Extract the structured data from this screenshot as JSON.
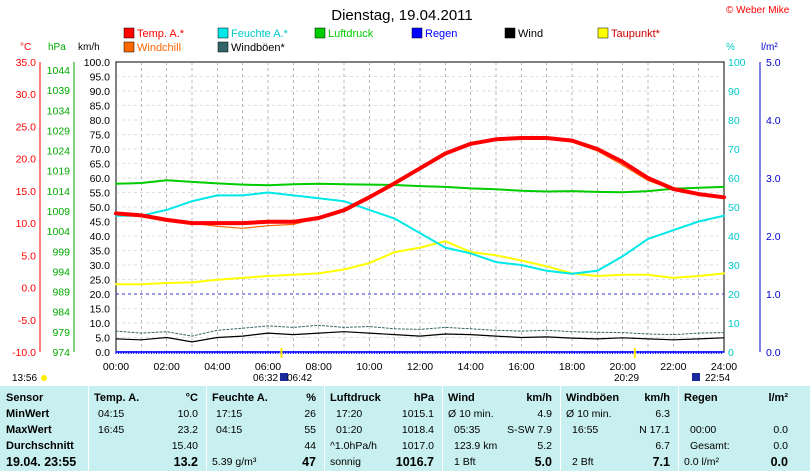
{
  "header": {
    "title": "Dienstag, 19.04.2011",
    "copyright": "© Weber Mike",
    "time_left": "13:56",
    "sun_times": [
      "06:32",
      "06:42",
      "20:29",
      "22:54"
    ]
  },
  "legend": [
    {
      "label": "Temp. A.*",
      "color": "#ff0000"
    },
    {
      "label": "Feuchte A.*",
      "color": "#00e8e8"
    },
    {
      "label": "Luftdruck",
      "color": "#00cc00"
    },
    {
      "label": "Regen",
      "color": "#0000ff"
    },
    {
      "label": "Wind",
      "color": "#000000"
    },
    {
      "label": "Taupunkt*",
      "color": "#ffff00"
    },
    {
      "label": "Windchill",
      "color": "#ff6600"
    },
    {
      "label": "Windböen*",
      "color": "#336666"
    }
  ],
  "axes": {
    "temp_unit": "°C",
    "hpa_unit": "hPa",
    "kmh_unit": "km/h",
    "pct_unit": "%",
    "rain_unit": "l/m²",
    "temp_ticks": [
      "35.0",
      "30.0",
      "25.0",
      "20.0",
      "15.0",
      "10.0",
      "5.0",
      "0.0",
      "-5.0",
      "-10.0"
    ],
    "hpa_ticks": [
      "1044",
      "1039",
      "1034",
      "1029",
      "1024",
      "1019",
      "1014",
      "1009",
      "1004",
      "999",
      "994",
      "989",
      "984",
      "979",
      "974"
    ],
    "kmh_ticks": [
      "100.0",
      "95.0",
      "90.0",
      "85.0",
      "80.0",
      "75.0",
      "70.0",
      "65.0",
      "60.0",
      "55.0",
      "50.0",
      "45.0",
      "40.0",
      "35.0",
      "30.0",
      "25.0",
      "20.0",
      "15.0",
      "10.0",
      "5.0",
      "0.0"
    ],
    "pct_ticks": [
      "100",
      "90",
      "80",
      "70",
      "60",
      "50",
      "40",
      "30",
      "20",
      "10",
      "0"
    ],
    "rain_ticks": [
      "5.0",
      "4.0",
      "3.0",
      "2.0",
      "1.0",
      "0.0"
    ],
    "x_ticks": [
      "00:00",
      "02:00",
      "04:00",
      "06:00",
      "08:00",
      "10:00",
      "12:00",
      "14:00",
      "16:00",
      "18:00",
      "20:00",
      "22:00",
      "24:00"
    ]
  },
  "chart_data": {
    "type": "line",
    "title": "Dienstag, 19.04.2011",
    "x": [
      0,
      1,
      2,
      3,
      4,
      5,
      6,
      7,
      8,
      9,
      10,
      11,
      12,
      13,
      14,
      15,
      16,
      17,
      18,
      19,
      20,
      21,
      22,
      23,
      24
    ],
    "xlim": [
      0,
      24
    ],
    "series": [
      {
        "name": "Temp. A.*",
        "axis": "temp",
        "color": "#ff0000",
        "values": [
          11.5,
          11.2,
          10.5,
          10.0,
          10.0,
          10.0,
          10.2,
          10.2,
          10.8,
          12.0,
          14.0,
          16.2,
          18.5,
          20.8,
          22.3,
          23.0,
          23.2,
          23.2,
          22.8,
          21.5,
          19.5,
          17.0,
          15.3,
          14.5,
          14.0
        ]
      },
      {
        "name": "Windchill",
        "axis": "temp",
        "color": "#ff6600",
        "values": [
          11.5,
          11.2,
          10.5,
          10.0,
          9.5,
          9.2,
          9.6,
          9.8,
          10.8,
          12.0,
          14.0,
          16.2,
          18.5,
          20.8,
          22.3,
          23.0,
          23.2,
          23.2,
          22.6,
          21.2,
          19.0,
          16.6,
          15.2,
          14.5,
          14.0
        ]
      },
      {
        "name": "Feuchte A.*",
        "axis": "pct",
        "color": "#00e8e8",
        "values": [
          47,
          47,
          49,
          52,
          54,
          54,
          55,
          54,
          53,
          52,
          49,
          46,
          41,
          36,
          34,
          31,
          30,
          28,
          27,
          28,
          33,
          39,
          42,
          45,
          47
        ]
      },
      {
        "name": "Luftdruck",
        "axis": "hpa",
        "color": "#00cc00",
        "values": [
          1017.5,
          1017.7,
          1018.4,
          1018.0,
          1017.6,
          1017.3,
          1017.1,
          1017.4,
          1017.5,
          1017.4,
          1017.3,
          1017.2,
          1016.9,
          1016.7,
          1016.3,
          1016.1,
          1015.7,
          1015.5,
          1015.6,
          1015.4,
          1015.3,
          1015.6,
          1016.2,
          1016.5,
          1016.7
        ]
      },
      {
        "name": "Taupunkt*",
        "axis": "temp",
        "color": "#ffff00",
        "values": [
          0.5,
          0.5,
          0.7,
          0.8,
          1.2,
          1.5,
          1.8,
          2.0,
          2.2,
          2.8,
          3.8,
          5.5,
          6.2,
          7.2,
          5.5,
          5.0,
          4.2,
          3.3,
          2.2,
          1.8,
          2.0,
          2.0,
          1.5,
          1.8,
          2.2
        ]
      },
      {
        "name": "Wind",
        "axis": "kmh",
        "color": "#000000",
        "values": [
          4.5,
          4.2,
          5.0,
          3.5,
          5.0,
          5.5,
          6.5,
          6.0,
          6.5,
          7.0,
          6.5,
          6.0,
          5.5,
          6.2,
          6.0,
          5.5,
          5.0,
          5.2,
          4.8,
          4.5,
          4.9,
          4.5,
          4.2,
          4.5,
          4.9
        ]
      },
      {
        "name": "Windböen*",
        "axis": "kmh",
        "color": "#336666",
        "values": [
          7.2,
          6.5,
          7.0,
          5.5,
          7.5,
          8.2,
          9.0,
          8.5,
          9.2,
          8.5,
          8.8,
          8.0,
          7.8,
          8.5,
          8.0,
          7.5,
          7.2,
          7.5,
          7.0,
          6.8,
          6.7,
          6.2,
          6.0,
          6.5,
          6.7
        ]
      },
      {
        "name": "Regen",
        "axis": "rain",
        "color": "#0000ff",
        "values": [
          0,
          0,
          0,
          0,
          0,
          0,
          0,
          0,
          0,
          0,
          0,
          0,
          0,
          0,
          0,
          0,
          0,
          0,
          0,
          0,
          0,
          0,
          0,
          0,
          0
        ]
      }
    ],
    "axis_ranges": {
      "temp": [
        -10,
        35
      ],
      "hpa": [
        974,
        1049
      ],
      "kmh": [
        0,
        100
      ],
      "pct": [
        0,
        100
      ],
      "rain": [
        0,
        5
      ]
    },
    "grid": true,
    "legend_position": "top"
  },
  "stats": {
    "row_labels": [
      "Sensor",
      "MinWert",
      "MaxWert",
      "Durchschnitt",
      "19.04. 23:55"
    ],
    "temp": {
      "header": "Temp. A.",
      "unit": "°C",
      "min_time": "04:15",
      "min": "10.0",
      "max_time": "16:45",
      "max": "23.2",
      "avg": "15.40",
      "current": "13.2"
    },
    "humidity": {
      "header": "Feuchte A.",
      "unit": "%",
      "min_time": "17:15",
      "min": "26",
      "max_time": "04:15",
      "max": "55",
      "avg": "44",
      "abs": "5.39 g/m³",
      "current": "47"
    },
    "pressure": {
      "header": "Luftdruck",
      "unit": "hPa",
      "min_time": "17:20",
      "min": "1015.1",
      "max_time": "01:20",
      "max": "1018.4",
      "trend": "^1.0hPa/h",
      "trend_val": "1017.0",
      "weather": "sonnig",
      "current": "1016.7"
    },
    "wind": {
      "header": "Wind",
      "unit": "km/h",
      "avg10_label": "Ø 10 min.",
      "avg10": "4.9",
      "dir_time": "05:35",
      "dir": "S-SW 7.9",
      "run": "123.9 km",
      "run_val": "5.2",
      "bft": "1 Bft",
      "current": "5.0"
    },
    "gust": {
      "header": "Windböen",
      "unit": "km/h",
      "avg10_label": "Ø 10 min.",
      "avg10": "6.3",
      "max_time": "16:55",
      "max": "N 17.1",
      "avg": "6.7",
      "bft": "2 Bft",
      "current": "7.1"
    },
    "rain": {
      "header": "Regen",
      "unit": "l/m²",
      "time": "00:00",
      "val1": "0.0",
      "total_label": "Gesamt:",
      "total": "0.0",
      "rate": "0.0 l/m²",
      "current": "0.0"
    }
  }
}
